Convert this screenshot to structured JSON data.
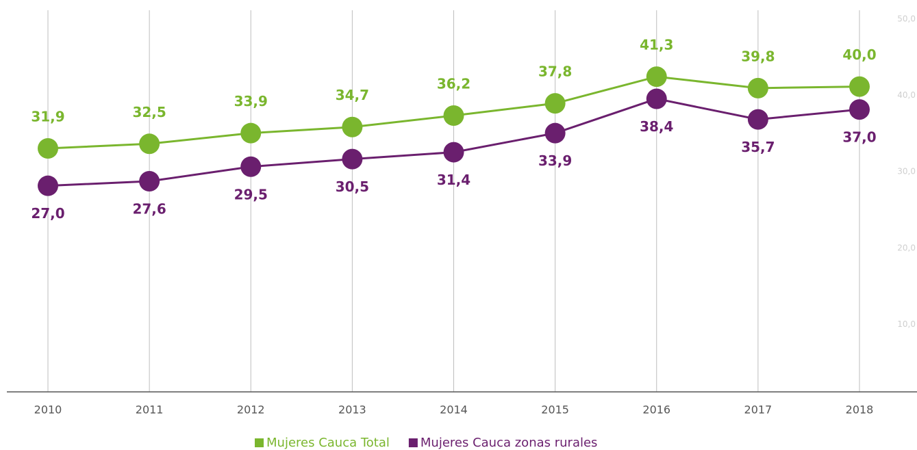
{
  "chart_data": {
    "type": "line",
    "categories": [
      "2010",
      "2011",
      "2012",
      "2013",
      "2014",
      "2015",
      "2016",
      "2017",
      "2018"
    ],
    "series": [
      {
        "name": "Mujeres Cauca Total",
        "color": "#7ab62e",
        "values": [
          31.9,
          32.5,
          33.9,
          34.7,
          36.2,
          37.8,
          41.3,
          39.8,
          40.0
        ],
        "value_labels": [
          "31,9",
          "32,5",
          "33,9",
          "34,7",
          "36,2",
          "37,8",
          "41,3",
          "39,8",
          "40,0"
        ]
      },
      {
        "name": "Mujeres Cauca zonas rurales",
        "color": "#6a1f6e",
        "values": [
          27.0,
          27.6,
          29.5,
          30.5,
          31.4,
          33.9,
          38.4,
          35.7,
          37.0
        ],
        "value_labels": [
          "27,0",
          "27,6",
          "29,5",
          "30,5",
          "31,4",
          "33,9",
          "38,4",
          "35,7",
          "37,0"
        ]
      }
    ],
    "ylim": [
      0,
      50
    ],
    "yticks": [
      {
        "value": 10,
        "label": "10,0"
      },
      {
        "value": 20,
        "label": "20,0"
      },
      {
        "value": 30,
        "label": "30,0"
      },
      {
        "value": 40,
        "label": "40,0"
      },
      {
        "value": 50,
        "label": "50,0"
      }
    ],
    "grid": true,
    "legend": "bottom"
  }
}
